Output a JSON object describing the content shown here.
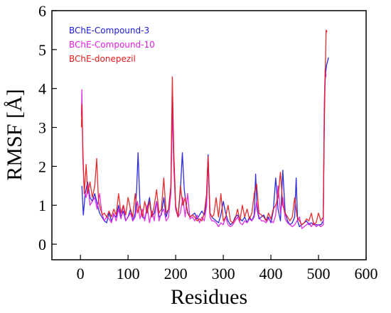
{
  "chart_data": {
    "type": "line",
    "title": "",
    "xlabel": "Residues",
    "ylabel": "RMSF [Å]",
    "xlim": [
      -60,
      600
    ],
    "ylim": [
      -0.4,
      6
    ],
    "xticks": [
      0,
      100,
      200,
      300,
      400,
      500,
      600
    ],
    "yticks": [
      0,
      1,
      2,
      3,
      4,
      5,
      6
    ],
    "grid": false,
    "legend_position": "top-left",
    "series": [
      {
        "name": "BChE-Compound-3",
        "color": "#1a1adb",
        "x": [
          3,
          6,
          10,
          15,
          20,
          25,
          30,
          36,
          40,
          45,
          50,
          55,
          60,
          65,
          70,
          75,
          80,
          85,
          90,
          95,
          100,
          105,
          110,
          115,
          118,
          121,
          125,
          130,
          135,
          140,
          145,
          150,
          155,
          160,
          165,
          170,
          175,
          180,
          185,
          190,
          193,
          196,
          200,
          205,
          210,
          214,
          218,
          222,
          226,
          230,
          235,
          240,
          245,
          250,
          255,
          260,
          264,
          268,
          272,
          276,
          280,
          285,
          290,
          295,
          300,
          305,
          310,
          315,
          320,
          325,
          330,
          335,
          340,
          345,
          350,
          355,
          360,
          365,
          368,
          371,
          375,
          380,
          385,
          390,
          395,
          400,
          405,
          410,
          415,
          420,
          425,
          430,
          435,
          440,
          445,
          450,
          453,
          456,
          460,
          465,
          470,
          475,
          480,
          485,
          490,
          495,
          500,
          505,
          510,
          513,
          515,
          517,
          519,
          521
        ],
        "y": [
          1.5,
          0.75,
          1.3,
          1.6,
          1.2,
          1.1,
          1.3,
          1.0,
          0.8,
          0.7,
          0.6,
          0.55,
          0.8,
          0.6,
          0.75,
          0.7,
          1.0,
          0.7,
          0.85,
          0.6,
          0.7,
          0.9,
          0.6,
          0.8,
          1.4,
          2.35,
          1.0,
          0.7,
          0.65,
          0.9,
          1.2,
          0.7,
          0.8,
          1.1,
          0.7,
          0.75,
          1.2,
          0.7,
          0.9,
          1.5,
          3.8,
          2.2,
          0.9,
          0.7,
          1.4,
          2.35,
          1.4,
          1.0,
          0.8,
          0.7,
          0.75,
          0.8,
          0.65,
          0.75,
          0.85,
          0.75,
          1.0,
          2.3,
          0.8,
          0.7,
          0.65,
          0.6,
          0.55,
          0.75,
          1.1,
          0.8,
          0.6,
          0.5,
          0.55,
          0.7,
          0.75,
          0.65,
          0.6,
          0.7,
          0.55,
          0.7,
          0.6,
          0.75,
          1.8,
          0.9,
          0.65,
          0.7,
          0.75,
          0.6,
          0.7,
          0.55,
          0.85,
          1.7,
          0.9,
          0.6,
          1.9,
          0.8,
          0.6,
          0.5,
          0.55,
          0.7,
          1.7,
          0.6,
          0.45,
          0.5,
          0.55,
          0.6,
          0.5,
          0.55,
          0.5,
          0.5,
          0.5,
          0.5,
          0.6,
          4.0,
          4.4,
          4.6,
          4.7,
          4.8
        ]
      },
      {
        "name": "BChE-Compound-10",
        "color": "#e01ee0",
        "x": [
          2,
          3,
          5,
          8,
          12,
          16,
          20,
          25,
          30,
          35,
          40,
          45,
          50,
          55,
          60,
          65,
          70,
          75,
          80,
          85,
          90,
          95,
          100,
          105,
          110,
          115,
          120,
          125,
          130,
          135,
          140,
          145,
          150,
          155,
          160,
          165,
          170,
          175,
          180,
          185,
          190,
          193,
          196,
          200,
          205,
          210,
          215,
          220,
          225,
          230,
          235,
          240,
          245,
          250,
          255,
          260,
          265,
          268,
          272,
          276,
          280,
          285,
          290,
          295,
          300,
          305,
          310,
          315,
          320,
          325,
          330,
          335,
          340,
          345,
          350,
          355,
          360,
          365,
          370,
          375,
          380,
          385,
          390,
          395,
          400,
          405,
          410,
          415,
          420,
          425,
          430,
          435,
          440,
          445,
          450,
          455,
          460,
          465,
          470,
          475,
          480,
          485,
          490,
          495,
          500,
          505,
          510,
          512,
          514,
          516
        ],
        "y": [
          3.3,
          3.97,
          2.2,
          1.4,
          1.2,
          1.5,
          1.0,
          1.1,
          1.2,
          0.9,
          1.3,
          0.8,
          0.6,
          0.7,
          0.65,
          0.55,
          0.8,
          0.6,
          0.9,
          0.65,
          1.0,
          0.6,
          0.7,
          0.8,
          0.6,
          0.7,
          1.1,
          0.65,
          0.9,
          0.6,
          1.0,
          0.55,
          0.85,
          0.6,
          1.1,
          0.6,
          0.8,
          0.9,
          0.6,
          0.7,
          1.3,
          3.5,
          2.0,
          0.9,
          0.7,
          0.8,
          1.2,
          0.7,
          1.3,
          0.65,
          0.7,
          0.6,
          0.75,
          0.55,
          0.7,
          0.6,
          1.0,
          2.2,
          0.7,
          0.6,
          0.6,
          0.55,
          0.45,
          0.55,
          0.5,
          0.7,
          0.5,
          0.45,
          0.5,
          0.6,
          0.7,
          0.55,
          0.5,
          0.6,
          0.55,
          0.65,
          0.6,
          0.7,
          1.1,
          0.7,
          0.6,
          0.6,
          0.55,
          0.65,
          0.6,
          0.55,
          0.75,
          1.5,
          0.8,
          1.2,
          0.65,
          0.55,
          0.5,
          0.45,
          0.5,
          0.6,
          0.7,
          0.4,
          0.45,
          0.5,
          0.55,
          0.45,
          0.55,
          0.45,
          0.5,
          0.45,
          0.5,
          3.5,
          4.5,
          4.3
        ]
      },
      {
        "name": "BChE-donepezil",
        "color": "#e41a1a",
        "x": [
          2,
          3,
          5,
          8,
          12,
          15,
          20,
          25,
          30,
          34,
          38,
          42,
          46,
          50,
          55,
          60,
          65,
          70,
          75,
          80,
          85,
          90,
          95,
          100,
          105,
          110,
          115,
          120,
          125,
          130,
          135,
          140,
          145,
          150,
          155,
          160,
          165,
          170,
          175,
          180,
          185,
          190,
          193,
          196,
          200,
          205,
          210,
          215,
          220,
          225,
          230,
          235,
          240,
          245,
          250,
          255,
          260,
          265,
          268,
          272,
          276,
          280,
          285,
          290,
          295,
          300,
          305,
          310,
          315,
          320,
          325,
          330,
          335,
          340,
          345,
          350,
          355,
          360,
          365,
          370,
          375,
          380,
          385,
          390,
          395,
          400,
          405,
          410,
          415,
          420,
          425,
          430,
          435,
          440,
          445,
          450,
          455,
          460,
          465,
          470,
          475,
          480,
          485,
          490,
          495,
          500,
          505,
          510,
          512,
          514,
          516,
          518
        ],
        "y": [
          3.0,
          3.6,
          2.5,
          1.3,
          2.05,
          1.3,
          1.6,
          1.2,
          1.5,
          2.2,
          1.1,
          0.9,
          0.75,
          0.8,
          0.7,
          0.85,
          0.7,
          0.9,
          0.75,
          1.3,
          0.8,
          1.0,
          0.75,
          1.2,
          0.9,
          0.7,
          1.3,
          0.8,
          1.0,
          0.7,
          1.1,
          0.8,
          1.1,
          0.7,
          1.0,
          1.4,
          0.8,
          0.9,
          1.7,
          0.8,
          0.9,
          1.5,
          4.3,
          2.4,
          1.0,
          0.7,
          1.5,
          1.0,
          1.2,
          0.8,
          0.7,
          0.75,
          0.7,
          0.6,
          0.65,
          0.6,
          0.8,
          1.3,
          2.25,
          0.8,
          0.7,
          0.75,
          1.2,
          0.7,
          1.3,
          0.6,
          0.7,
          1.0,
          0.6,
          0.55,
          0.65,
          0.9,
          0.6,
          1.0,
          0.7,
          0.9,
          0.65,
          0.8,
          1.3,
          1.55,
          0.8,
          0.75,
          0.7,
          0.6,
          0.8,
          0.65,
          0.9,
          1.0,
          1.2,
          1.85,
          1.0,
          0.8,
          0.7,
          0.6,
          0.7,
          1.2,
          0.7,
          0.6,
          0.5,
          0.55,
          0.65,
          0.6,
          0.8,
          0.5,
          0.55,
          0.8,
          0.6,
          0.7,
          3.0,
          4.3,
          5.5,
          5.45
        ]
      }
    ]
  }
}
